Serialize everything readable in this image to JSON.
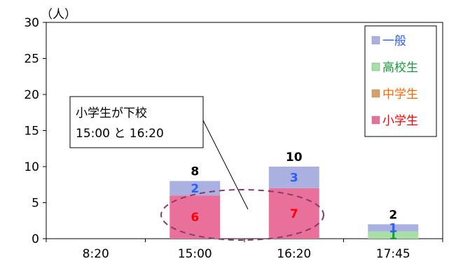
{
  "chart_data": {
    "type": "bar",
    "stacked": true,
    "y_unit": "（人）",
    "categories": [
      "8:20",
      "15:00",
      "16:20",
      "17:45"
    ],
    "ylim": [
      0,
      30
    ],
    "yticks": [
      0,
      5,
      10,
      15,
      20,
      25,
      30
    ],
    "series": [
      {
        "name": "小学生",
        "values": [
          0,
          6,
          7,
          0
        ],
        "color": "#e8709a",
        "label_color": "#ff0000"
      },
      {
        "name": "中学生",
        "values": [
          0,
          0,
          0,
          0
        ],
        "color": "#d9a066",
        "label_color": "#ff6600"
      },
      {
        "name": "高校生",
        "values": [
          0,
          0,
          0,
          1
        ],
        "color": "#a6e0a6",
        "label_color": "#1a9a3a"
      },
      {
        "name": "一般",
        "values": [
          0,
          2,
          3,
          1
        ],
        "color": "#aab0e0",
        "label_color": "#2a5cff"
      }
    ],
    "totals": [
      null,
      8,
      10,
      2
    ],
    "legend_order": [
      "一般",
      "高校生",
      "中学生",
      "小学生"
    ],
    "legend_position": "top-right",
    "annotation": {
      "line1": "小学生が下校",
      "line2": "15:00 と 16:20"
    },
    "grid": false
  }
}
